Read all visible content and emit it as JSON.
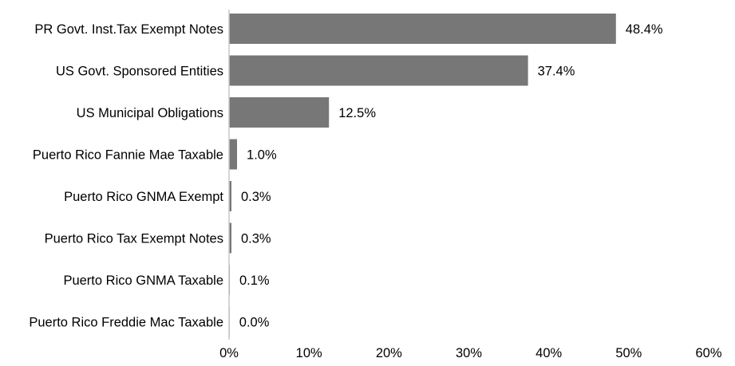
{
  "chart_data": {
    "type": "bar",
    "orientation": "horizontal",
    "title": "",
    "xlabel": "",
    "ylabel": "",
    "categories": [
      "PR Govt. Inst.Tax Exempt Notes",
      "US Govt. Sponsored Entities",
      "US Municipal Obligations",
      "Puerto Rico Fannie Mae Taxable",
      "Puerto Rico GNMA Exempt",
      "Puerto Rico Tax Exempt Notes",
      "Puerto Rico GNMA Taxable",
      "Puerto Rico Freddie Mac Taxable"
    ],
    "values": [
      48.4,
      37.4,
      12.5,
      1.0,
      0.3,
      0.3,
      0.1,
      0.0
    ],
    "value_labels": [
      "48.4%",
      "37.4%",
      "12.5%",
      "1.0%",
      "0.3%",
      "0.3%",
      "0.1%",
      "0.0%"
    ],
    "xlim": [
      0,
      60
    ],
    "xticks": [
      0,
      10,
      20,
      30,
      40,
      50,
      60
    ],
    "xtick_labels": [
      "0%",
      "10%",
      "20%",
      "30%",
      "40%",
      "50%",
      "60%"
    ],
    "grid": false,
    "legend": "none",
    "colors": {
      "bar": "#777777",
      "axis": "#c8c8c8",
      "text": "#000000"
    }
  }
}
